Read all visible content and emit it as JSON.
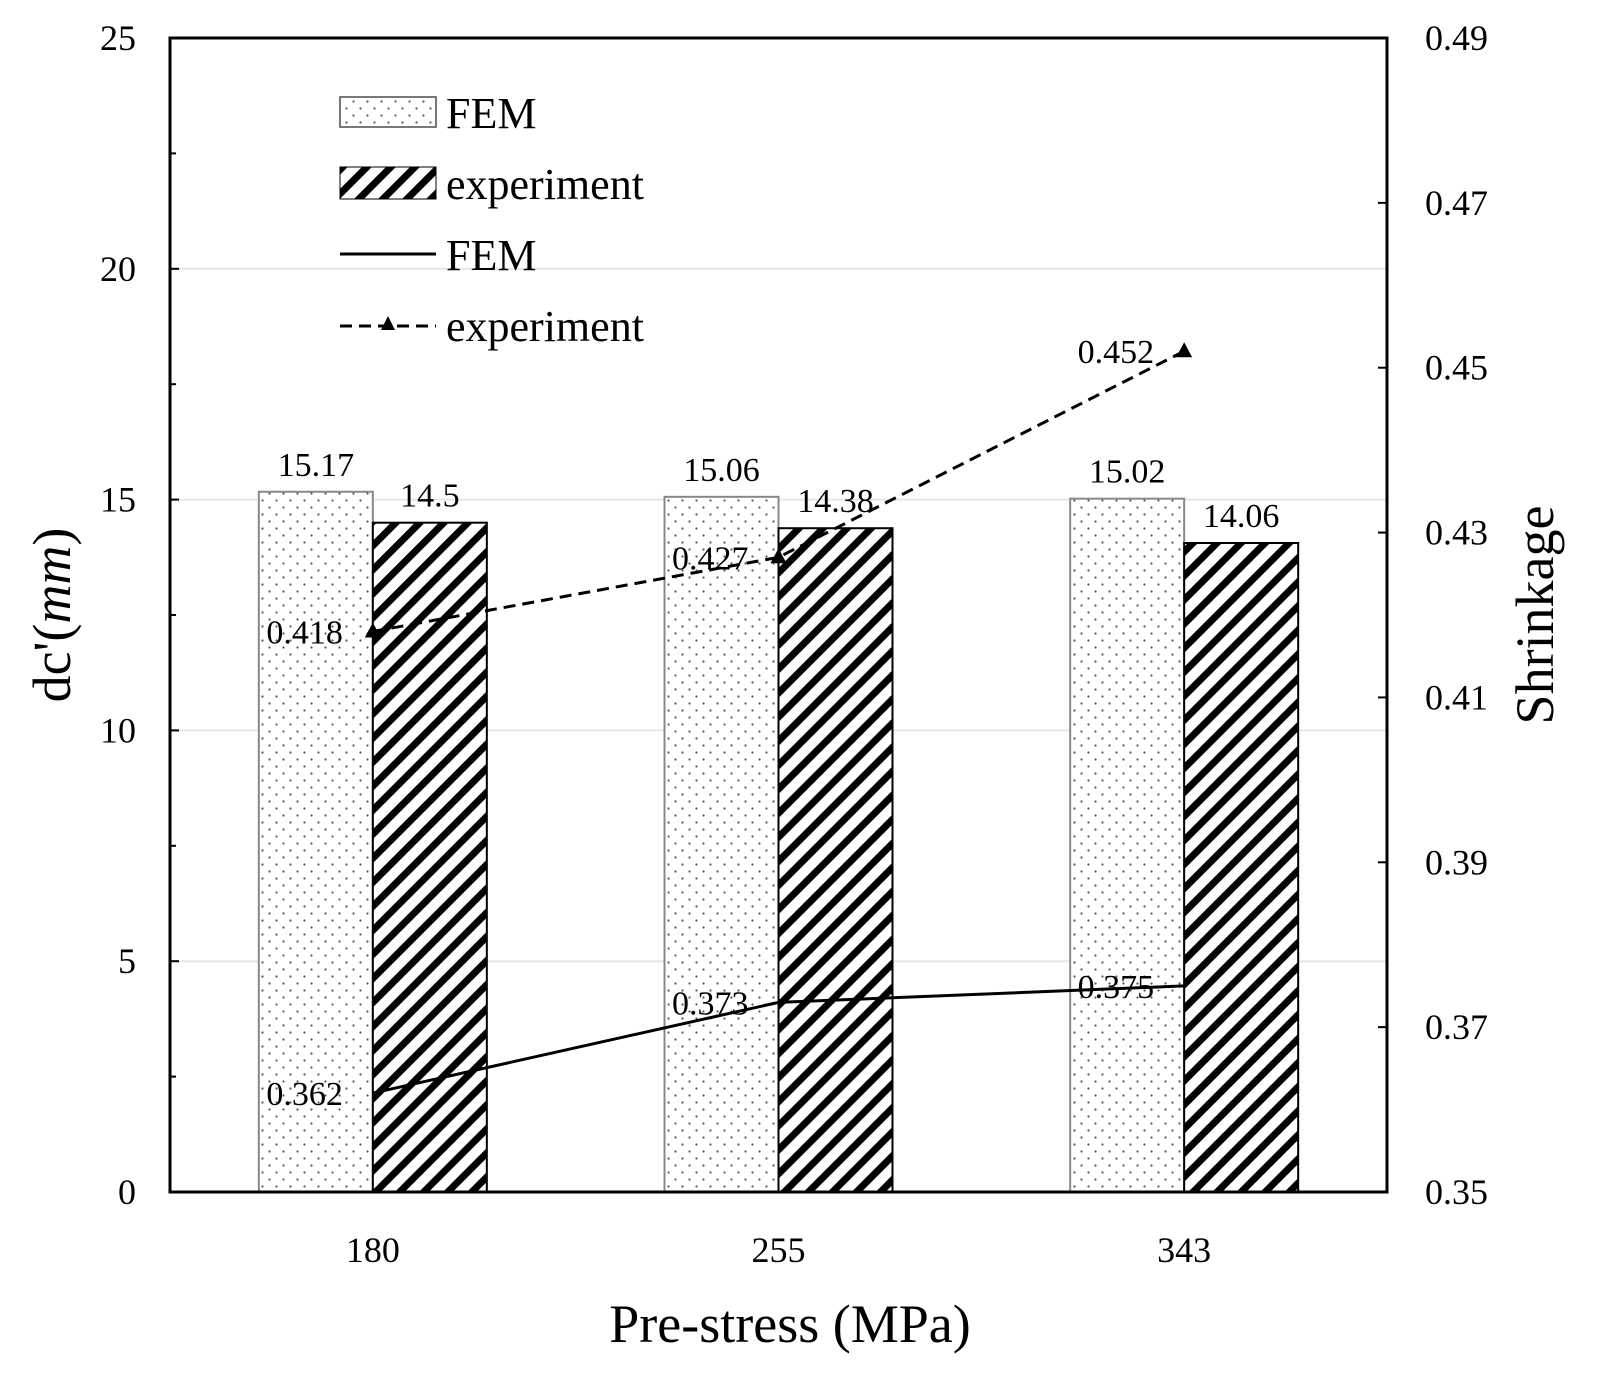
{
  "chart_data": {
    "type": "bar",
    "categories": [
      "180",
      "255",
      "343"
    ],
    "xlabel": "Pre-stress (MPa)",
    "ylabel_main": "dc'(",
    "ylabel_italic": "mm",
    "ylabel_close": ")",
    "ylabel_right": "Shrinkage",
    "y_left": {
      "range": [
        0,
        25
      ],
      "ticks": [
        0,
        5,
        10,
        15,
        20,
        25
      ]
    },
    "y_right": {
      "range": [
        0.35,
        0.49
      ],
      "ticks": [
        0.35,
        0.37,
        0.39,
        0.41,
        0.43,
        0.45,
        0.47,
        0.49
      ]
    },
    "bar_series": [
      {
        "name": "FEM",
        "pattern": "dots",
        "values": [
          15.17,
          15.06,
          15.02
        ],
        "labels": [
          "15.17",
          "15.06",
          "15.02"
        ]
      },
      {
        "name": "experiment",
        "pattern": "hatch",
        "values": [
          14.5,
          14.38,
          14.06
        ],
        "labels": [
          "14.5",
          "14.38",
          "14.06"
        ]
      }
    ],
    "line_series": [
      {
        "name": "FEM",
        "style": "solid",
        "axis": "right",
        "values": [
          0.362,
          0.373,
          0.375
        ],
        "labels": [
          "0.362",
          "0.373",
          "0.375"
        ]
      },
      {
        "name": "experiment",
        "style": "dashed",
        "marker": "triangle",
        "axis": "right",
        "values": [
          0.418,
          0.427,
          0.452
        ],
        "labels": [
          "0.418",
          "0.427",
          "0.452"
        ]
      }
    ],
    "legend_position": "top-left",
    "grid": "horizontal light"
  }
}
